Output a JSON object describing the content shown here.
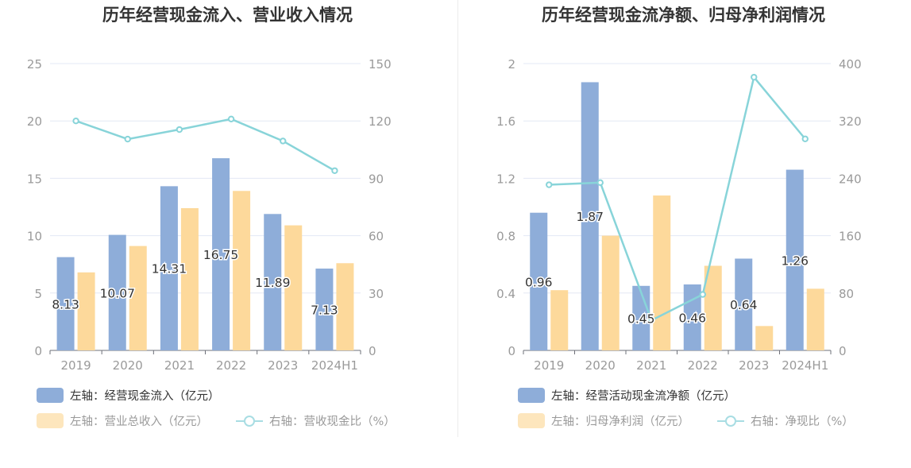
{
  "colors": {
    "bar1": "#8eadd9",
    "bar2": "#fdd99b",
    "line": "#88d4d9",
    "grid": "#e3e8f4",
    "axis": "#9a9a9a",
    "label": "#333333"
  },
  "chart_data": [
    {
      "type": "bar",
      "title": "历年经营现金流入、营业收入情况",
      "categories": [
        "2019",
        "2020",
        "2021",
        "2022",
        "2023",
        "2024H1"
      ],
      "yticks_left": [
        "0",
        "5",
        "10",
        "15",
        "20",
        "25"
      ],
      "yticks_right": [
        "0",
        "30",
        "60",
        "90",
        "120",
        "150"
      ],
      "ylim_left": [
        0,
        25
      ],
      "ylim_right": [
        0,
        150
      ],
      "series": [
        {
          "name": "左轴：经营现金流入（亿元）",
          "axis": "left",
          "kind": "bar",
          "values": [
            8.13,
            10.07,
            14.31,
            16.75,
            11.89,
            7.13
          ],
          "labels": [
            "8.13",
            "10.07",
            "14.31",
            "16.75",
            "11.89",
            "7.13"
          ]
        },
        {
          "name": "左轴：营业总收入（亿元）",
          "axis": "left",
          "kind": "bar",
          "values": [
            6.8,
            9.1,
            12.4,
            13.9,
            10.9,
            7.6
          ]
        },
        {
          "name": "右轴：营收现金比（%）",
          "axis": "right",
          "kind": "line",
          "values": [
            120,
            110.5,
            115.5,
            121,
            109.5,
            94
          ]
        }
      ],
      "legend_placement": "bottom",
      "grid": true
    },
    {
      "type": "bar",
      "title": "历年经营现金流净额、归母净利润情况",
      "categories": [
        "2019",
        "2020",
        "2021",
        "2022",
        "2023",
        "2024H1"
      ],
      "yticks_left": [
        "0",
        "0.4",
        "0.8",
        "1.2",
        "1.6",
        "2"
      ],
      "yticks_right": [
        "0",
        "80",
        "160",
        "240",
        "320",
        "400"
      ],
      "ylim_left": [
        0,
        2
      ],
      "ylim_right": [
        0,
        400
      ],
      "series": [
        {
          "name": "左轴：经营活动现金流净额（亿元）",
          "axis": "left",
          "kind": "bar",
          "values": [
            0.96,
            1.87,
            0.45,
            0.46,
            0.64,
            1.26
          ],
          "labels": [
            "0.96",
            "1.87",
            "0.45",
            "0.46",
            "0.64",
            "1.26"
          ]
        },
        {
          "name": "左轴：归母净利润（亿元）",
          "axis": "left",
          "kind": "bar",
          "values": [
            0.42,
            0.8,
            1.08,
            0.59,
            0.17,
            0.43
          ]
        },
        {
          "name": "右轴：净现比（%）",
          "axis": "right",
          "kind": "line",
          "values": [
            231,
            234,
            42,
            78,
            381,
            295
          ]
        }
      ],
      "legend_placement": "bottom",
      "grid": true
    }
  ]
}
